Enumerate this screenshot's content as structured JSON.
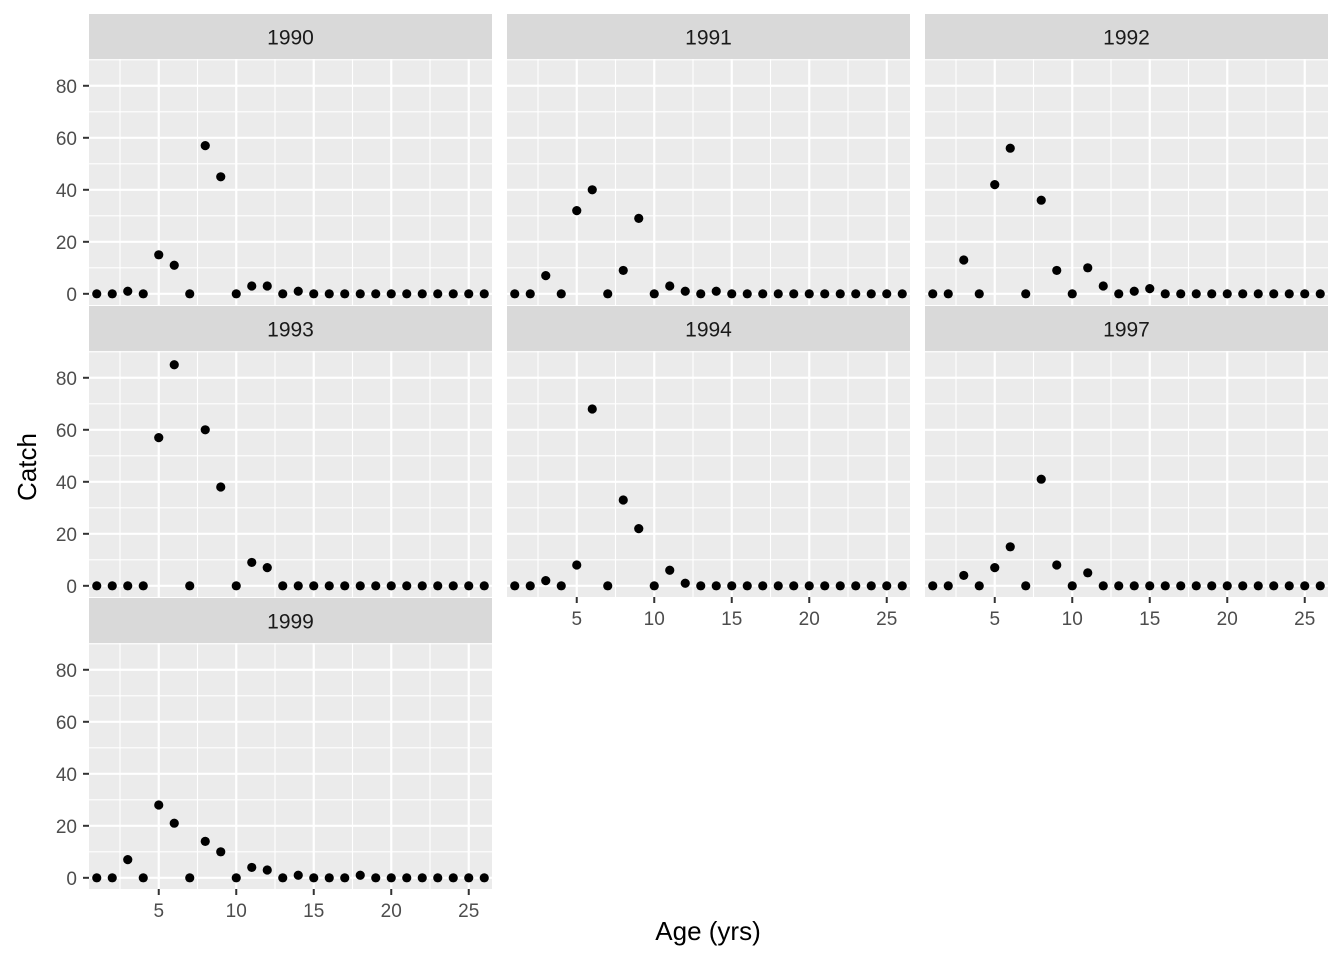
{
  "chart_data": {
    "type": "scatter",
    "layout": "facet-wrap",
    "xlabel": "Age (yrs)",
    "ylabel": "Catch",
    "xlim": [
      0.5,
      26.5
    ],
    "ylim": [
      -4.3,
      90.3
    ],
    "x_ticks": [
      5,
      10,
      15,
      20,
      25
    ],
    "y_ticks": [
      0,
      20,
      40,
      60,
      80
    ],
    "grid": true,
    "legend": "none",
    "colors": {
      "panel_bg": "#ebebeb",
      "strip_bg": "#d9d9d9",
      "grid": "#ffffff",
      "point": "#000000",
      "axis_text": "#4d4d4d",
      "title_text": "#000000",
      "strip_text": "#1a1a1a"
    },
    "x": [
      1,
      2,
      3,
      4,
      5,
      6,
      7,
      8,
      9,
      10,
      11,
      12,
      13,
      14,
      15,
      16,
      17,
      18,
      19,
      20,
      21,
      22,
      23,
      24,
      25,
      26
    ],
    "panels": [
      {
        "label": "1990",
        "values": [
          0,
          0,
          1,
          0,
          15,
          11,
          0,
          57,
          45,
          0,
          3,
          3,
          0,
          1,
          0,
          0,
          0,
          0,
          0,
          0,
          0,
          0,
          0,
          0,
          0,
          0
        ]
      },
      {
        "label": "1991",
        "values": [
          0,
          0,
          7,
          0,
          32,
          40,
          0,
          9,
          29,
          0,
          3,
          1,
          0,
          1,
          0,
          0,
          0,
          0,
          0,
          0,
          0,
          0,
          0,
          0,
          0,
          0
        ]
      },
      {
        "label": "1992",
        "values": [
          0,
          0,
          13,
          0,
          42,
          56,
          0,
          36,
          9,
          0,
          10,
          3,
          0,
          1,
          2,
          0,
          0,
          0,
          0,
          0,
          0,
          0,
          0,
          0,
          0,
          0
        ]
      },
      {
        "label": "1993",
        "values": [
          0,
          0,
          0,
          0,
          57,
          85,
          0,
          60,
          38,
          0,
          9,
          7,
          0,
          0,
          0,
          0,
          0,
          0,
          0,
          0,
          0,
          0,
          0,
          0,
          0,
          0
        ]
      },
      {
        "label": "1994",
        "values": [
          0,
          0,
          2,
          0,
          8,
          68,
          0,
          33,
          22,
          0,
          6,
          1,
          0,
          0,
          0,
          0,
          0,
          0,
          0,
          0,
          0,
          0,
          0,
          0,
          0,
          0
        ]
      },
      {
        "label": "1997",
        "values": [
          0,
          0,
          4,
          0,
          7,
          15,
          0,
          41,
          8,
          0,
          5,
          0,
          0,
          0,
          0,
          0,
          0,
          0,
          0,
          0,
          0,
          0,
          0,
          0,
          0,
          0
        ]
      },
      {
        "label": "1999",
        "values": [
          0,
          0,
          7,
          0,
          28,
          21,
          0,
          14,
          10,
          0,
          4,
          3,
          0,
          1,
          0,
          0,
          0,
          1,
          0,
          0,
          0,
          0,
          0,
          0,
          0,
          0
        ]
      }
    ]
  }
}
